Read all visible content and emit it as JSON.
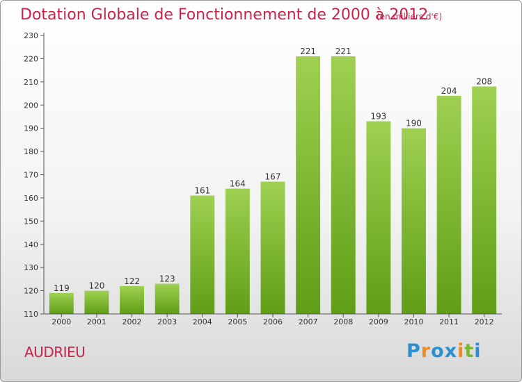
{
  "chart_data": {
    "type": "bar",
    "title": "Dotation Globale de Fonctionnement de 2000 à 2012",
    "subtitle": "(en milliers d'€)",
    "categories": [
      "2000",
      "2001",
      "2002",
      "2003",
      "2004",
      "2005",
      "2006",
      "2007",
      "2008",
      "2009",
      "2010",
      "2011",
      "2012"
    ],
    "values": [
      119,
      120,
      122,
      123,
      161,
      164,
      167,
      221,
      221,
      193,
      190,
      204,
      208
    ],
    "ylim": [
      110,
      230
    ],
    "yticks": [
      110,
      120,
      130,
      140,
      150,
      160,
      170,
      180,
      190,
      200,
      210,
      220,
      230
    ],
    "grid": false,
    "bar_color_top": "#9fd052",
    "bar_color_bottom": "#5f9e16"
  },
  "footer": {
    "commune": "AUDRIEU",
    "logo_letters": [
      "P",
      "r",
      "o",
      "x",
      "i",
      "t",
      "i"
    ],
    "logo_colors": [
      "#2b8fd0",
      "#f08a1c",
      "#2b8fd0",
      "#2b8fd0",
      "#f08a1c",
      "#7ab632",
      "#2b8fd0"
    ]
  }
}
